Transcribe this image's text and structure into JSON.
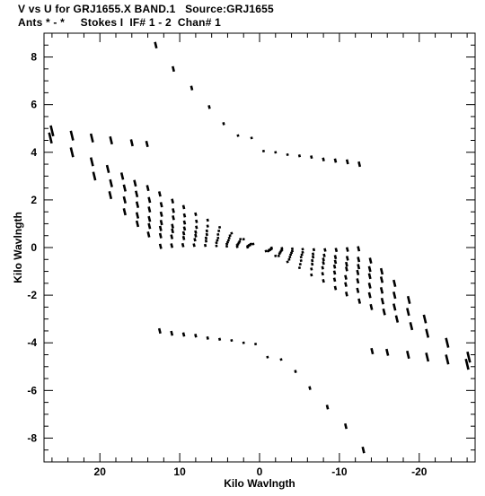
{
  "header": {
    "line1": "V vs U for GRJ1655.X BAND.1   Source:GRJ1655",
    "line2": "Ants * - *     Stokes I  IF# 1 - 2  Chan# 1"
  },
  "chart_data": {
    "type": "scatter",
    "xlabel": "Kilo Wavlngth",
    "ylabel": "Kilo Wavlngth",
    "xlim": [
      27,
      -27
    ],
    "ylim": [
      -9,
      9
    ],
    "xticks": [
      20,
      10,
      0,
      -10,
      -20
    ],
    "yticks": [
      8,
      6,
      4,
      2,
      0,
      -2,
      -4,
      -6,
      -8
    ],
    "xtick_labels": [
      "20",
      "10",
      "0",
      "-10",
      "-20"
    ],
    "ytick_labels": [
      "8",
      "6",
      "4",
      "2",
      "0",
      "-2",
      "-4",
      "-6",
      "-8"
    ],
    "grid": false,
    "point_color": "#000000",
    "series": [
      {
        "points": [
          [
            26.0,
            4.9
          ],
          [
            23.5,
            4.7
          ],
          [
            21.0,
            4.6
          ],
          [
            18.6,
            4.5
          ],
          [
            16.0,
            4.4
          ],
          [
            14.1,
            4.35
          ],
          [
            26.2,
            4.6
          ],
          [
            23.5,
            4.0
          ],
          [
            21.0,
            3.6
          ],
          [
            19.0,
            3.3
          ],
          [
            17.2,
            3.0
          ],
          [
            15.6,
            2.7
          ],
          [
            14.0,
            2.5
          ],
          [
            12.5,
            2.25
          ],
          [
            10.9,
            1.95
          ],
          [
            9.5,
            1.7
          ],
          [
            8.0,
            1.4
          ],
          [
            6.5,
            1.15
          ],
          [
            5.0,
            0.85
          ],
          [
            3.5,
            0.6
          ],
          [
            2.0,
            0.35
          ],
          [
            0.8,
            0.15
          ],
          [
            20.7,
            3.0
          ],
          [
            18.6,
            2.7
          ],
          [
            16.9,
            2.5
          ],
          [
            15.4,
            2.25
          ],
          [
            13.8,
            2.0
          ],
          [
            12.3,
            1.8
          ],
          [
            10.8,
            1.55
          ],
          [
            9.4,
            1.35
          ],
          [
            7.9,
            1.1
          ],
          [
            6.5,
            0.9
          ],
          [
            5.1,
            0.7
          ],
          [
            3.7,
            0.5
          ],
          [
            2.4,
            0.35
          ],
          [
            1.1,
            0.15
          ],
          [
            18.7,
            2.2
          ],
          [
            16.9,
            2.0
          ],
          [
            15.3,
            1.8
          ],
          [
            13.8,
            1.6
          ],
          [
            12.3,
            1.4
          ],
          [
            10.8,
            1.25
          ],
          [
            9.4,
            1.05
          ],
          [
            7.9,
            0.85
          ],
          [
            6.6,
            0.7
          ],
          [
            5.2,
            0.55
          ],
          [
            3.8,
            0.4
          ],
          [
            2.5,
            0.25
          ],
          [
            1.2,
            0.1
          ],
          [
            16.9,
            1.5
          ],
          [
            15.3,
            1.35
          ],
          [
            13.8,
            1.2
          ],
          [
            12.3,
            1.05
          ],
          [
            10.9,
            0.9
          ],
          [
            9.4,
            0.8
          ],
          [
            8.0,
            0.65
          ],
          [
            6.6,
            0.55
          ],
          [
            5.2,
            0.4
          ],
          [
            3.9,
            0.3
          ],
          [
            2.6,
            0.2
          ],
          [
            1.3,
            0.1
          ],
          [
            15.3,
            1.0
          ],
          [
            13.8,
            0.9
          ],
          [
            12.4,
            0.8
          ],
          [
            10.9,
            0.7
          ],
          [
            9.5,
            0.6
          ],
          [
            8.0,
            0.5
          ],
          [
            6.7,
            0.4
          ],
          [
            5.3,
            0.3
          ],
          [
            4.0,
            0.22
          ],
          [
            2.7,
            0.14
          ],
          [
            1.4,
            0.07
          ],
          [
            13.9,
            0.55
          ],
          [
            12.4,
            0.5
          ],
          [
            11.0,
            0.45
          ],
          [
            9.5,
            0.4
          ],
          [
            8.1,
            0.33
          ],
          [
            6.7,
            0.27
          ],
          [
            5.4,
            0.2
          ],
          [
            4.1,
            0.15
          ],
          [
            2.8,
            0.1
          ],
          [
            1.5,
            0.05
          ],
          [
            12.4,
            0.05
          ],
          [
            11.0,
            0.08
          ],
          [
            9.6,
            0.1
          ],
          [
            8.2,
            0.1
          ],
          [
            6.8,
            0.09
          ],
          [
            5.4,
            0.07
          ],
          [
            4.1,
            0.05
          ],
          [
            2.8,
            0.03
          ],
          [
            1.5,
            0.01
          ],
          [
            13.0,
            8.5
          ],
          [
            10.8,
            7.5
          ],
          [
            8.5,
            6.7
          ],
          [
            6.3,
            5.9
          ],
          [
            4.5,
            5.2
          ],
          [
            2.7,
            4.7
          ],
          [
            1.0,
            4.6
          ],
          [
            -0.5,
            4.05
          ],
          [
            -2.0,
            4.0
          ],
          [
            -3.5,
            3.9
          ],
          [
            -5.0,
            3.85
          ],
          [
            -6.5,
            3.8
          ],
          [
            -8.0,
            3.7
          ],
          [
            -9.5,
            3.65
          ],
          [
            -11.0,
            3.6
          ],
          [
            -12.5,
            3.5
          ]
        ]
      },
      {
        "points": [
          [
            -26.0,
            -4.9
          ],
          [
            -23.5,
            -4.7
          ],
          [
            -21.0,
            -4.6
          ],
          [
            -18.6,
            -4.5
          ],
          [
            -16.0,
            -4.4
          ],
          [
            -14.1,
            -4.35
          ],
          [
            -26.2,
            -4.6
          ],
          [
            -23.5,
            -4.0
          ],
          [
            -21.0,
            -3.6
          ],
          [
            -19.0,
            -3.3
          ],
          [
            -17.2,
            -3.0
          ],
          [
            -15.6,
            -2.7
          ],
          [
            -14.0,
            -2.5
          ],
          [
            -12.5,
            -2.25
          ],
          [
            -10.9,
            -1.95
          ],
          [
            -9.5,
            -1.7
          ],
          [
            -8.0,
            -1.4
          ],
          [
            -6.5,
            -1.15
          ],
          [
            -5.0,
            -0.85
          ],
          [
            -3.5,
            -0.6
          ],
          [
            -2.0,
            -0.35
          ],
          [
            -0.8,
            -0.15
          ],
          [
            -20.7,
            -3.0
          ],
          [
            -18.6,
            -2.7
          ],
          [
            -16.9,
            -2.5
          ],
          [
            -15.4,
            -2.25
          ],
          [
            -13.8,
            -2.0
          ],
          [
            -12.3,
            -1.8
          ],
          [
            -10.8,
            -1.55
          ],
          [
            -9.4,
            -1.35
          ],
          [
            -7.9,
            -1.1
          ],
          [
            -6.5,
            -0.9
          ],
          [
            -5.1,
            -0.7
          ],
          [
            -3.7,
            -0.5
          ],
          [
            -2.4,
            -0.35
          ],
          [
            -1.1,
            -0.15
          ],
          [
            -18.7,
            -2.2
          ],
          [
            -16.9,
            -2.0
          ],
          [
            -15.3,
            -1.8
          ],
          [
            -13.8,
            -1.6
          ],
          [
            -12.3,
            -1.4
          ],
          [
            -10.8,
            -1.25
          ],
          [
            -9.4,
            -1.05
          ],
          [
            -7.9,
            -0.85
          ],
          [
            -6.6,
            -0.7
          ],
          [
            -5.2,
            -0.55
          ],
          [
            -3.8,
            -0.4
          ],
          [
            -2.5,
            -0.25
          ],
          [
            -1.2,
            -0.1
          ],
          [
            -16.9,
            -1.5
          ],
          [
            -15.3,
            -1.35
          ],
          [
            -13.8,
            -1.2
          ],
          [
            -12.3,
            -1.05
          ],
          [
            -10.9,
            -0.9
          ],
          [
            -9.4,
            -0.8
          ],
          [
            -8.0,
            -0.65
          ],
          [
            -6.6,
            -0.55
          ],
          [
            -5.2,
            -0.4
          ],
          [
            -3.9,
            -0.3
          ],
          [
            -2.6,
            -0.2
          ],
          [
            -1.3,
            -0.1
          ],
          [
            -15.3,
            -1.0
          ],
          [
            -13.8,
            -0.9
          ],
          [
            -12.4,
            -0.8
          ],
          [
            -10.9,
            -0.7
          ],
          [
            -9.5,
            -0.6
          ],
          [
            -8.0,
            -0.5
          ],
          [
            -6.7,
            -0.4
          ],
          [
            -5.3,
            -0.3
          ],
          [
            -4.0,
            -0.22
          ],
          [
            -2.7,
            -0.14
          ],
          [
            -1.4,
            -0.07
          ],
          [
            -13.9,
            -0.55
          ],
          [
            -12.4,
            -0.5
          ],
          [
            -11.0,
            -0.45
          ],
          [
            -9.5,
            -0.4
          ],
          [
            -8.1,
            -0.33
          ],
          [
            -6.7,
            -0.27
          ],
          [
            -5.4,
            -0.2
          ],
          [
            -4.1,
            -0.15
          ],
          [
            -2.8,
            -0.1
          ],
          [
            -1.5,
            -0.05
          ],
          [
            -12.4,
            -0.05
          ],
          [
            -11.0,
            -0.08
          ],
          [
            -9.6,
            -0.1
          ],
          [
            -8.2,
            -0.1
          ],
          [
            -6.8,
            -0.09
          ],
          [
            -5.4,
            -0.07
          ],
          [
            -4.1,
            -0.05
          ],
          [
            -2.8,
            -0.03
          ],
          [
            -1.5,
            -0.01
          ],
          [
            -13.0,
            -8.5
          ],
          [
            -10.8,
            -7.5
          ],
          [
            -8.5,
            -6.7
          ],
          [
            -6.3,
            -5.9
          ],
          [
            -4.5,
            -5.2
          ],
          [
            -2.7,
            -4.7
          ],
          [
            -1.0,
            -4.6
          ],
          [
            0.5,
            -4.05
          ],
          [
            2.0,
            -4.0
          ],
          [
            3.5,
            -3.9
          ],
          [
            5.0,
            -3.85
          ],
          [
            6.5,
            -3.8
          ],
          [
            8.0,
            -3.7
          ],
          [
            9.5,
            -3.65
          ],
          [
            11.0,
            -3.6
          ],
          [
            12.5,
            -3.5
          ]
        ]
      }
    ]
  }
}
